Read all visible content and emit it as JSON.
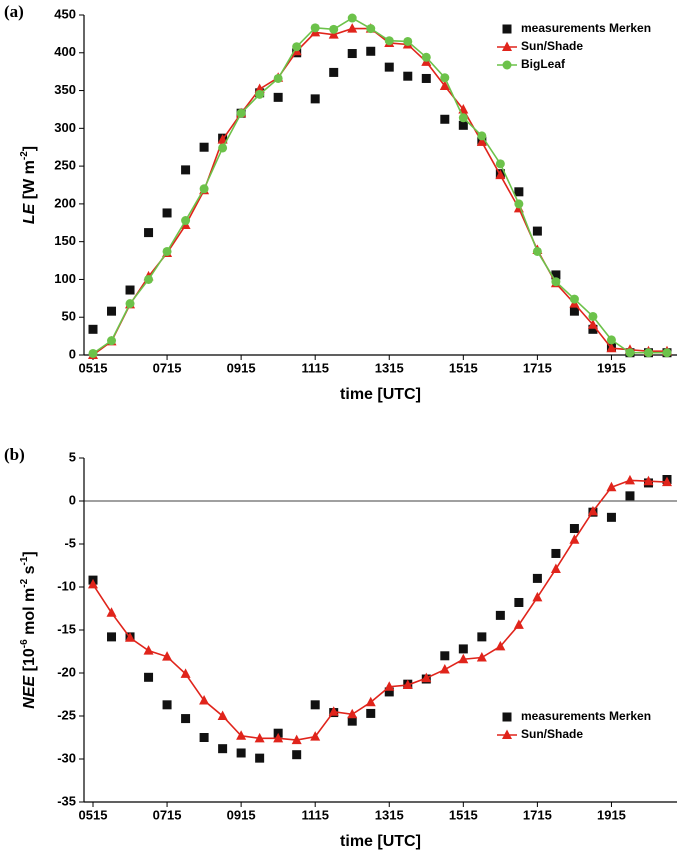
{
  "chart_data": [
    {
      "type": "line",
      "panel": "(a)",
      "ylabel": [
        {
          "text": "LE",
          "italic": true
        },
        {
          "text": " [W m"
        },
        {
          "text": "-2",
          "sup": true
        },
        {
          "text": "]"
        }
      ],
      "xlabel": "time [UTC]",
      "categories": [
        "0515",
        null,
        null,
        null,
        "0715",
        null,
        null,
        null,
        "0915",
        null,
        null,
        null,
        "1115",
        null,
        null,
        null,
        "1315",
        null,
        null,
        null,
        "1515",
        null,
        null,
        null,
        "1715",
        null,
        null,
        null,
        "1915",
        null,
        null,
        null
      ],
      "ylim": [
        0,
        450
      ],
      "yticks": [
        0,
        50,
        100,
        150,
        200,
        250,
        300,
        350,
        400,
        450
      ],
      "legend": "upper right",
      "zero_line": false,
      "series": [
        {
          "name": "measurements Merken",
          "color": "#111111",
          "marker": "square",
          "line": false,
          "values": [
            34,
            58,
            86,
            162,
            188,
            245,
            275,
            287,
            320,
            347,
            341,
            400,
            339,
            374,
            399,
            402,
            381,
            369,
            366,
            312,
            304,
            283,
            240,
            216,
            164,
            106,
            58,
            34,
            10,
            3,
            3,
            3
          ]
        },
        {
          "name": "Sun/Shade",
          "color": "#e0241b",
          "marker": "triangle",
          "line": true,
          "values": [
            0,
            18,
            67,
            104,
            135,
            172,
            218,
            285,
            320,
            352,
            367,
            402,
            427,
            424,
            432,
            432,
            413,
            411,
            388,
            356,
            325,
            282,
            238,
            194,
            139,
            95,
            68,
            40,
            9,
            7,
            5,
            5
          ]
        },
        {
          "name": "BigLeaf",
          "color": "#6cc24a",
          "marker": "circle",
          "line": true,
          "values": [
            2,
            19,
            68,
            100,
            137,
            178,
            220,
            274,
            320,
            345,
            366,
            408,
            433,
            431,
            446,
            432,
            416,
            415,
            394,
            367,
            314,
            290,
            253,
            200,
            137,
            97,
            74,
            51,
            20,
            3,
            3,
            3
          ]
        }
      ]
    },
    {
      "type": "line",
      "panel": "(b)",
      "ylabel": [
        {
          "text": "NEE",
          "italic": true
        },
        {
          "text": " [10"
        },
        {
          "text": "-6",
          "sup": true
        },
        {
          "text": " mol m"
        },
        {
          "text": "-2",
          "sup": true
        },
        {
          "text": " s"
        },
        {
          "text": "-1",
          "sup": true
        },
        {
          "text": "]"
        }
      ],
      "xlabel": "time [UTC]",
      "categories": [
        "0515",
        null,
        null,
        null,
        "0715",
        null,
        null,
        null,
        "0915",
        null,
        null,
        null,
        "1115",
        null,
        null,
        null,
        "1315",
        null,
        null,
        null,
        "1515",
        null,
        null,
        null,
        "1715",
        null,
        null,
        null,
        "1915",
        null,
        null,
        null
      ],
      "ylim": [
        -35,
        5
      ],
      "yticks": [
        -35,
        -30,
        -25,
        -20,
        -15,
        -10,
        -5,
        0,
        5
      ],
      "legend": "lower right",
      "zero_line": true,
      "series": [
        {
          "name": "measurements Merken",
          "color": "#111111",
          "marker": "square",
          "line": false,
          "values": [
            -9.2,
            -15.8,
            -15.8,
            -20.5,
            -23.7,
            -25.3,
            -27.5,
            -28.8,
            -29.3,
            -29.9,
            -27.0,
            -29.5,
            -23.7,
            -24.6,
            -25.6,
            -24.7,
            -22.2,
            -21.3,
            -20.7,
            -18.0,
            -17.2,
            -15.8,
            -13.3,
            -11.8,
            -9.0,
            -6.1,
            -3.2,
            -1.3,
            -1.9,
            0.6,
            2.1,
            2.5
          ]
        },
        {
          "name": "Sun/Shade",
          "color": "#e0241b",
          "marker": "triangle",
          "line": true,
          "values": [
            -9.7,
            -13.0,
            -15.9,
            -17.4,
            -18.1,
            -20.1,
            -23.2,
            -25.0,
            -27.3,
            -27.6,
            -27.6,
            -27.8,
            -27.4,
            -24.5,
            -24.8,
            -23.4,
            -21.6,
            -21.4,
            -20.6,
            -19.6,
            -18.4,
            -18.2,
            -16.9,
            -14.4,
            -11.2,
            -7.9,
            -4.5,
            -1.2,
            1.6,
            2.4,
            2.3,
            2.2
          ]
        }
      ]
    }
  ]
}
